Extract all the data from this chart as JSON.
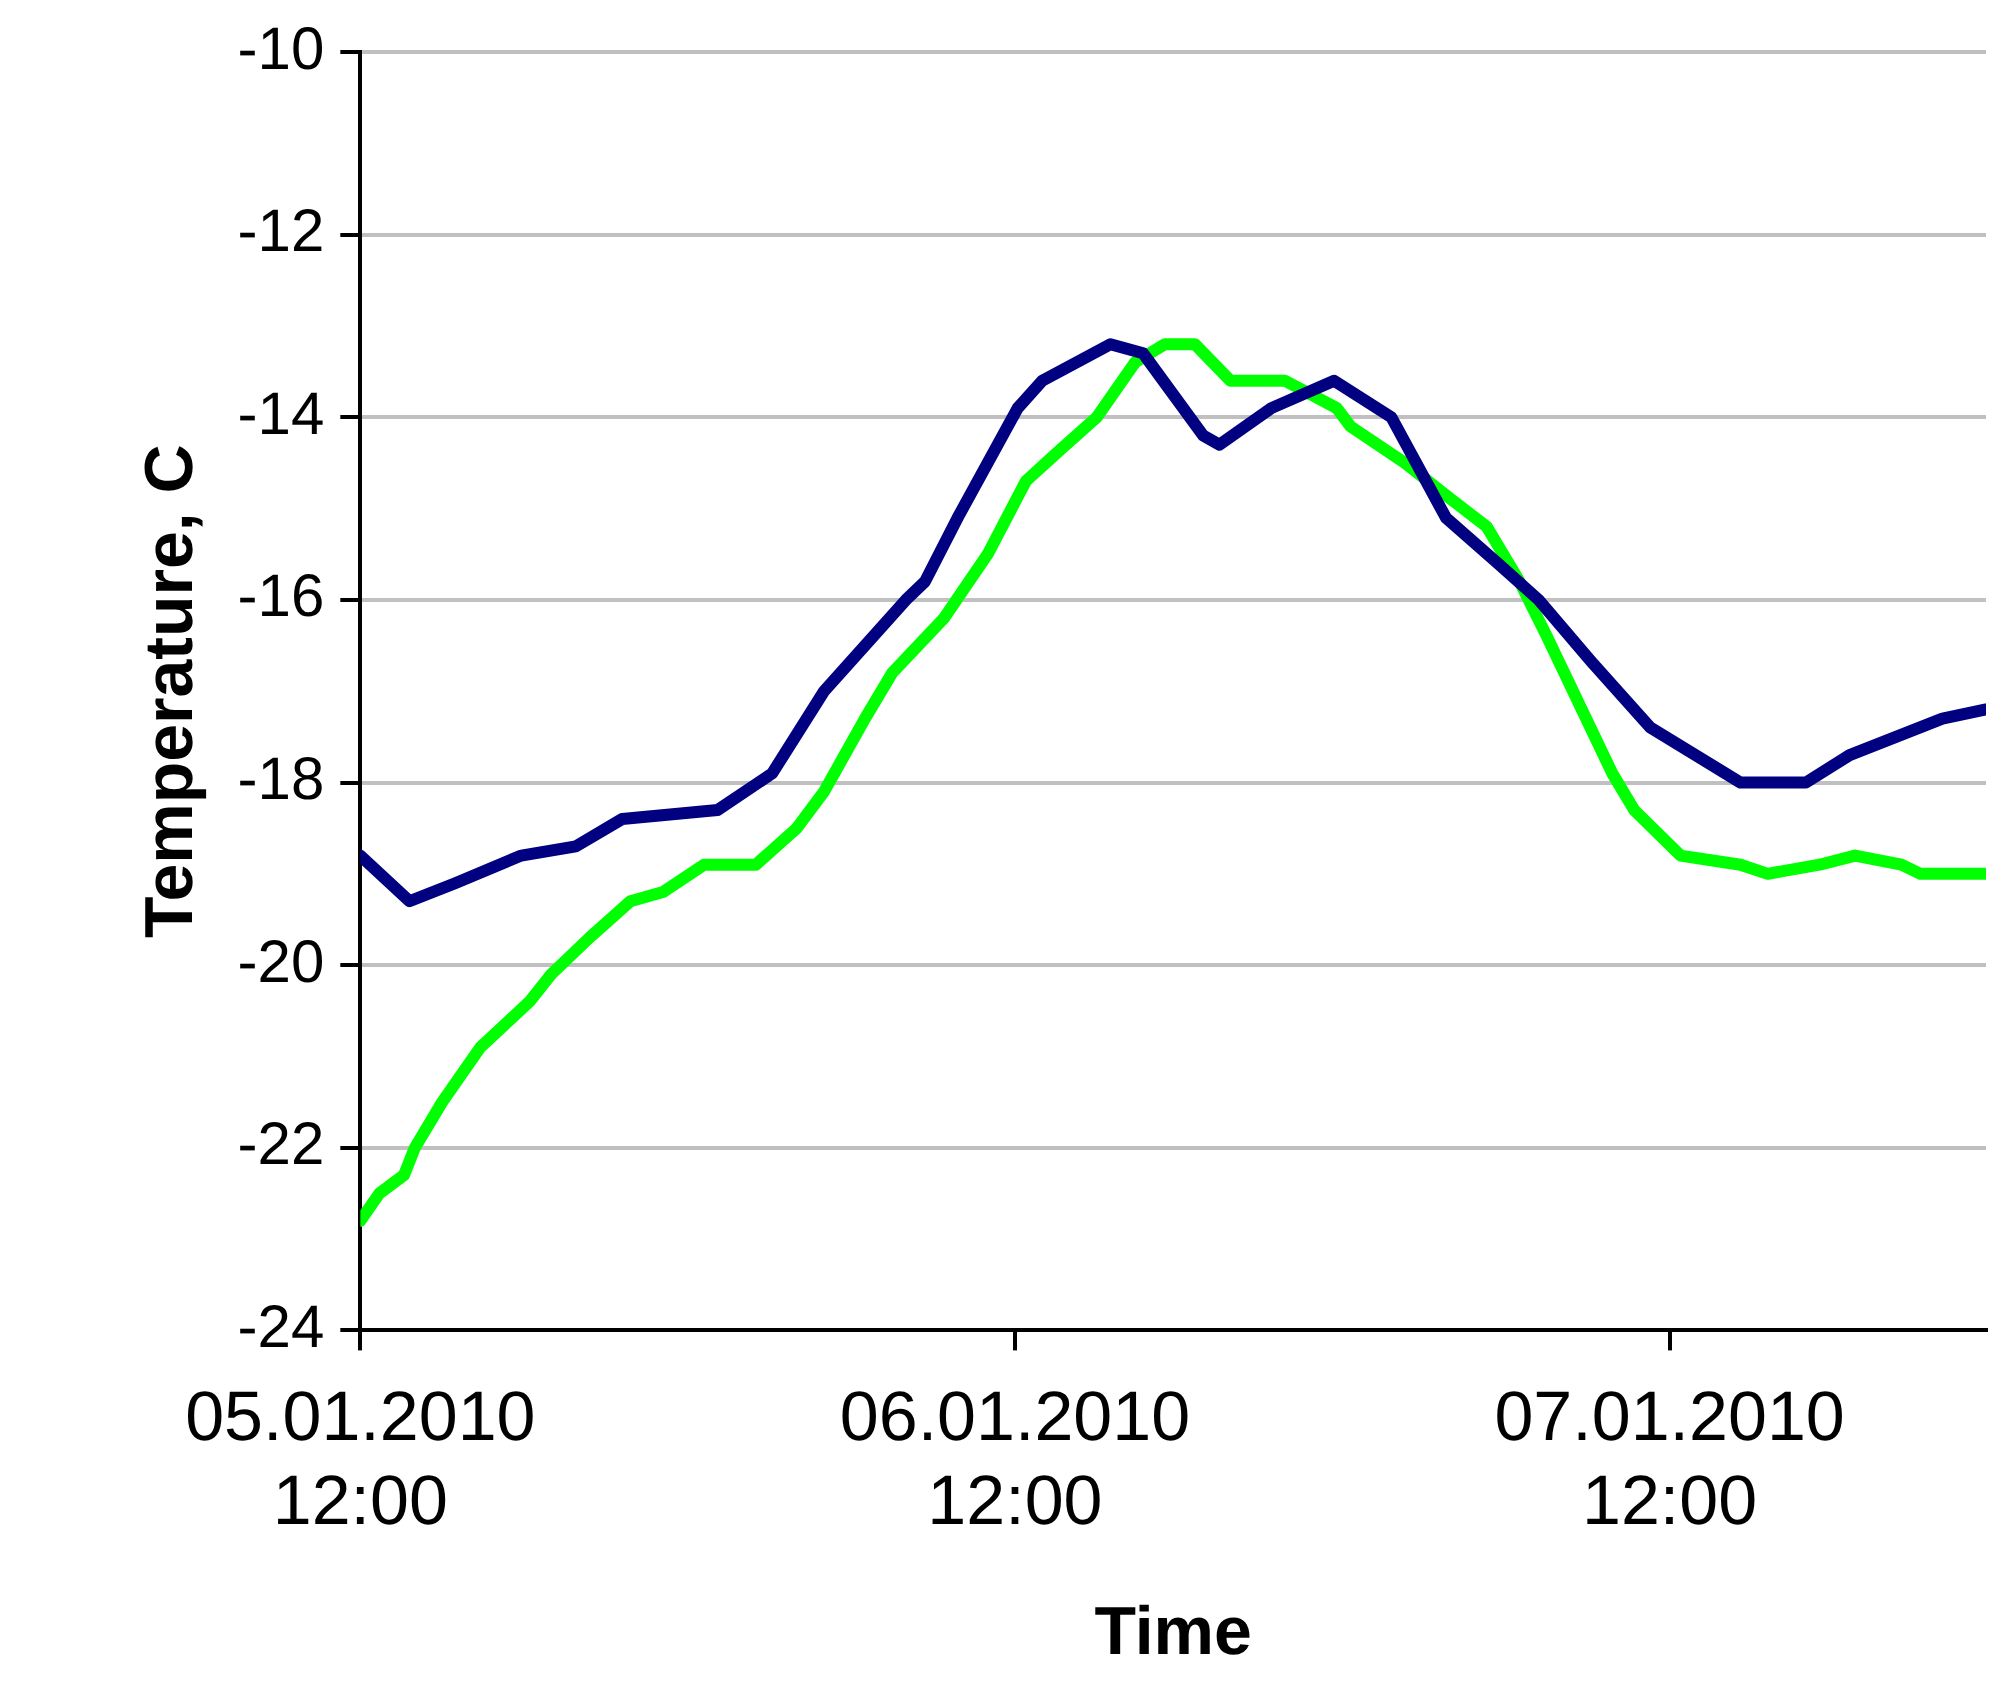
{
  "chart_data": {
    "type": "line",
    "xlabel": "Time",
    "ylabel": "Temperature, C",
    "xlim": [
      "2010-01-05T12:00",
      "2010-01-07T23:36"
    ],
    "xticks": [
      {
        "value": "2010-01-05T12:00",
        "label": "05.01.2010 12:00"
      },
      {
        "value": "2010-01-06T12:00",
        "label": "06.01.2010 12:00"
      },
      {
        "value": "2010-01-07T12:00",
        "label": "07.01.2010 12:00"
      }
    ],
    "ylim": [
      -24,
      -10
    ],
    "yticks": [
      -24,
      -22,
      -20,
      -18,
      -16,
      -14,
      -12,
      -10
    ],
    "grid": "y",
    "legend": false,
    "marker": "none",
    "line_style": "solid",
    "series": [
      {
        "color": "#000080",
        "x": [
          "2010-01-05T12:00",
          "2010-01-05T13:48",
          "2010-01-05T15:30",
          "2010-01-05T17:54",
          "2010-01-05T19:54",
          "2010-01-05T21:36",
          "2010-01-06T01:06",
          "2010-01-06T03:06",
          "2010-01-06T05:00",
          "2010-01-06T08:00",
          "2010-01-06T08:42",
          "2010-01-06T09:54",
          "2010-01-06T12:06",
          "2010-01-06T13:00",
          "2010-01-06T15:30",
          "2010-01-06T16:42",
          "2010-01-06T18:54",
          "2010-01-06T19:30",
          "2010-01-06T21:24",
          "2010-01-06T23:42",
          "2010-01-07T01:48",
          "2010-01-07T03:48",
          "2010-01-07T05:42",
          "2010-01-07T07:12",
          "2010-01-07T09:12",
          "2010-01-07T11:18",
          "2010-01-07T14:36",
          "2010-01-07T17:00",
          "2010-01-07T18:36",
          "2010-01-07T20:18",
          "2010-01-07T22:00",
          "2010-01-07T23:36"
        ],
        "values": [
          -18.8,
          -19.3,
          -19.1,
          -18.8,
          -18.7,
          -18.4,
          -18.3,
          -17.9,
          -17,
          -16,
          -15.8,
          -15.1,
          -13.9,
          -13.6,
          -13.2,
          -13.3,
          -14.2,
          -14.3,
          -13.9,
          -13.6,
          -14,
          -15.1,
          -15.6,
          -16,
          -16.7,
          -17.4,
          -18,
          -18,
          -17.7,
          -17.5,
          -17.3,
          -17.2
        ]
      },
      {
        "color": "#00ff00",
        "x": [
          "2010-01-05T12:00",
          "2010-01-05T12:42",
          "2010-01-05T13:36",
          "2010-01-05T14:00",
          "2010-01-05T15:00",
          "2010-01-05T16:24",
          "2010-01-05T18:12",
          "2010-01-05T19:00",
          "2010-01-05T20:24",
          "2010-01-05T21:54",
          "2010-01-05T23:06",
          "2010-01-06T00:36",
          "2010-01-06T02:30",
          "2010-01-06T04:00",
          "2010-01-06T05:00",
          "2010-01-06T06:30",
          "2010-01-06T07:30",
          "2010-01-06T09:24",
          "2010-01-06T11:00",
          "2010-01-06T12:24",
          "2010-01-06T13:30",
          "2010-01-06T15:00",
          "2010-01-06T16:24",
          "2010-01-06T17:30",
          "2010-01-06T18:36",
          "2010-01-06T19:54",
          "2010-01-06T21:54",
          "2010-01-06T23:48",
          "2010-01-07T00:18",
          "2010-01-07T02:18",
          "2010-01-07T04:00",
          "2010-01-07T05:18",
          "2010-01-07T06:30",
          "2010-01-07T07:30",
          "2010-01-07T09:54",
          "2010-01-07T10:42",
          "2010-01-07T12:24",
          "2010-01-07T14:36",
          "2010-01-07T15:36",
          "2010-01-07T17:30",
          "2010-01-07T18:48",
          "2010-01-07T20:30",
          "2010-01-07T21:12",
          "2010-01-07T23:36"
        ],
        "values": [
          -22.8,
          -22.5,
          -22.3,
          -22,
          -21.5,
          -20.9,
          -20.4,
          -20.1,
          -19.7,
          -19.3,
          -19.2,
          -18.9,
          -18.9,
          -18.5,
          -18.1,
          -17.3,
          -16.8,
          -16.2,
          -15.5,
          -14.7,
          -14.4,
          -14,
          -13.4,
          -13.2,
          -13.2,
          -13.6,
          -13.6,
          -13.9,
          -14.1,
          -14.5,
          -14.9,
          -15.2,
          -15.8,
          -16.4,
          -17.9,
          -18.3,
          -18.8,
          -18.9,
          -19,
          -18.9,
          -18.8,
          -18.9,
          -19,
          -19
        ]
      }
    ]
  }
}
